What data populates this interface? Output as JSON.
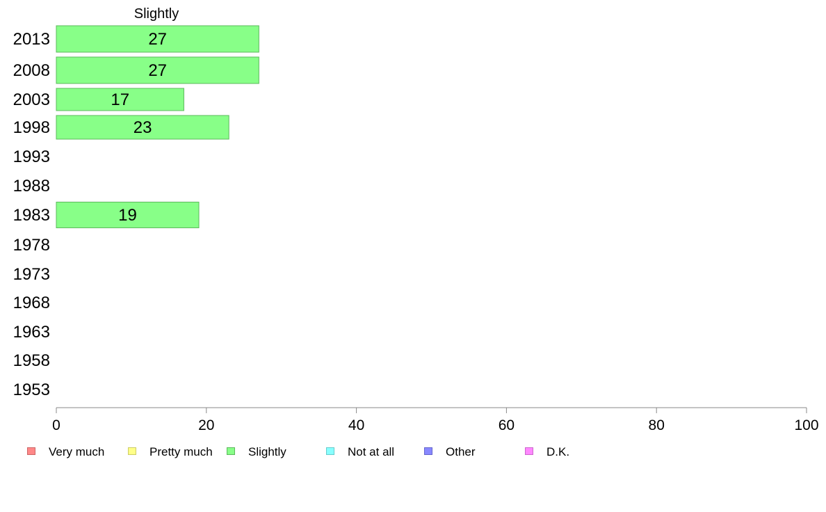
{
  "chart_data": {
    "type": "bar",
    "orientation": "horizontal",
    "title": "Slightly",
    "categories": [
      "2013",
      "2008",
      "2003",
      "1998",
      "1993",
      "1988",
      "1983",
      "1978",
      "1973",
      "1968",
      "1963",
      "1958",
      "1953"
    ],
    "series": [
      {
        "name": "Slightly",
        "color": "#88ff88",
        "values": [
          27,
          27,
          17,
          23,
          null,
          null,
          19,
          null,
          null,
          null,
          null,
          null,
          null
        ],
        "value_labels": [
          "27",
          "27",
          "17",
          "23",
          "",
          "",
          "19",
          "",
          "",
          "",
          "",
          "",
          ""
        ]
      }
    ],
    "xlim": [
      0,
      100
    ],
    "xticks": [
      "0",
      "20",
      "40",
      "60",
      "80",
      "100"
    ],
    "grid": false,
    "legend_position": "bottom",
    "legend": [
      {
        "label": "Very much",
        "color": "#ff8888"
      },
      {
        "label": "Pretty much",
        "color": "#ffff88"
      },
      {
        "label": "Slightly",
        "color": "#88ff88"
      },
      {
        "label": "Not at all",
        "color": "#88ffff"
      },
      {
        "label": "Other",
        "color": "#8888ff"
      },
      {
        "label": "D.K.",
        "color": "#ff88ff"
      }
    ]
  }
}
